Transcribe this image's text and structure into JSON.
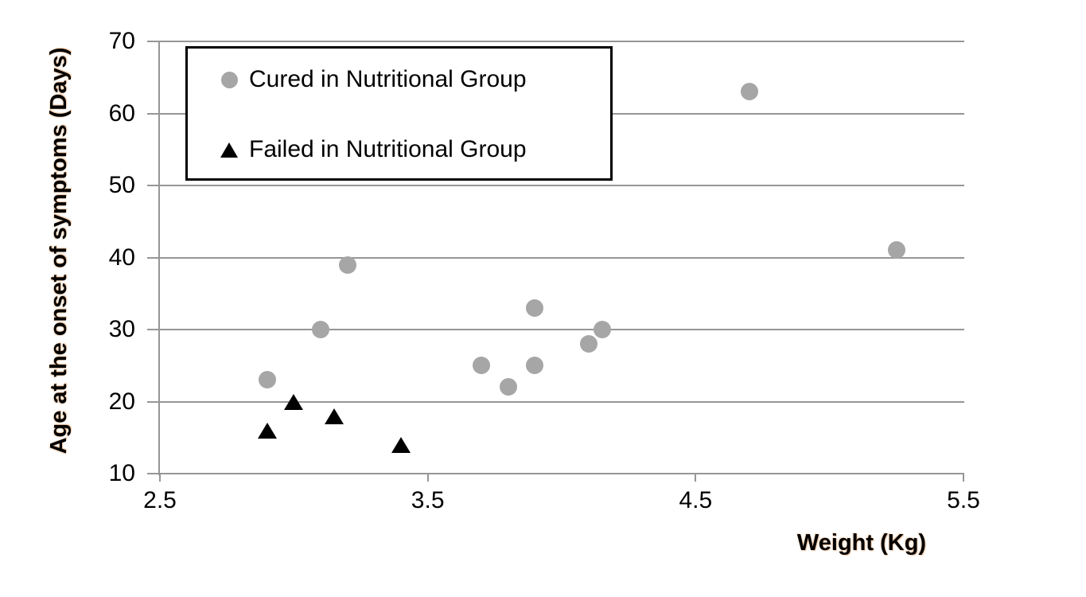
{
  "chart_data": {
    "type": "scatter",
    "title": "",
    "xlabel": "Weight (Kg)",
    "ylabel": "Age at the onset of symptoms (Days)",
    "xlim": [
      2.5,
      5.5
    ],
    "ylim": [
      10,
      70
    ],
    "x_tick_values": [
      2.5,
      3.5,
      4.5,
      5.5
    ],
    "x_tick_labels": [
      "2.5",
      "3.5",
      "4.5",
      "5.5"
    ],
    "y_tick_values": [
      10,
      20,
      30,
      40,
      50,
      60,
      70
    ],
    "y_tick_labels": [
      "10",
      "20",
      "30",
      "40",
      "50",
      "60",
      "70"
    ],
    "grid": "horizontal-only",
    "legend": {
      "position": "top-left-inside",
      "entries": [
        {
          "label": "Cured in Nutritional Group",
          "marker": "circle",
          "color": "#a6a6a6"
        },
        {
          "label": "Failed in Nutritional Group",
          "marker": "triangle",
          "color": "#000000"
        }
      ]
    },
    "series": [
      {
        "name": "Cured in Nutritional Group",
        "marker": "circle",
        "color": "#a6a6a6",
        "points": [
          [
            2.9,
            23
          ],
          [
            3.1,
            30
          ],
          [
            3.2,
            39
          ],
          [
            3.7,
            25
          ],
          [
            3.8,
            22
          ],
          [
            3.9,
            25
          ],
          [
            3.9,
            33
          ],
          [
            4.1,
            28
          ],
          [
            4.15,
            30
          ],
          [
            4.7,
            63
          ],
          [
            5.25,
            41
          ]
        ]
      },
      {
        "name": "Failed in Nutritional Group",
        "marker": "triangle",
        "color": "#000000",
        "points": [
          [
            2.9,
            16
          ],
          [
            3.0,
            20
          ],
          [
            3.15,
            18
          ],
          [
            3.4,
            14
          ]
        ]
      }
    ]
  },
  "colors": {
    "background": "#ffffff",
    "gridline": "#969696",
    "axis": "#969696",
    "text": "#000000"
  }
}
